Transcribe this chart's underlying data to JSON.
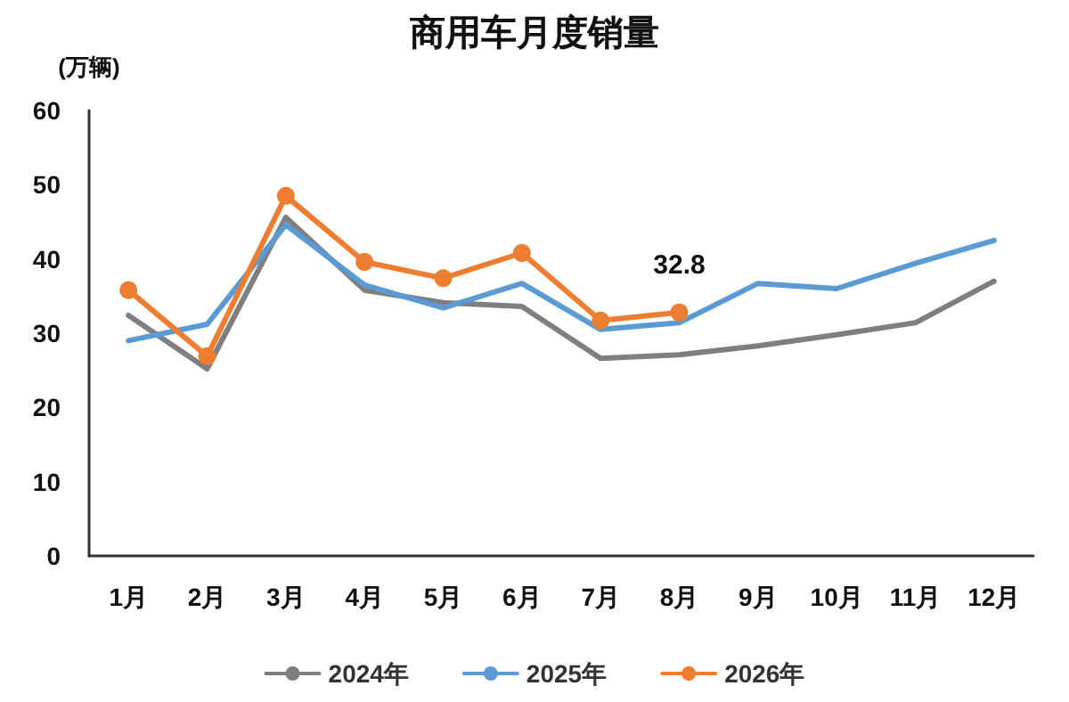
{
  "chart_data": {
    "type": "line",
    "title": "商用车月度销量",
    "ylabel": "(万辆)",
    "categories": [
      "1月",
      "2月",
      "3月",
      "4月",
      "5月",
      "6月",
      "7月",
      "8月",
      "9月",
      "10月",
      "11月",
      "12月"
    ],
    "series": [
      {
        "name": "2024年",
        "color": "#7f7f7f",
        "marker": "none",
        "values": [
          32.4,
          25.2,
          45.6,
          35.8,
          34.1,
          33.6,
          26.6,
          27.1,
          28.3,
          29.8,
          31.4,
          37.0
        ]
      },
      {
        "name": "2025年",
        "color": "#5b9bd5",
        "marker": "none",
        "values": [
          29.0,
          31.2,
          44.6,
          36.5,
          33.4,
          36.7,
          30.5,
          31.4,
          36.7,
          36.0,
          39.4,
          42.5
        ]
      },
      {
        "name": "2026年",
        "color": "#ed7d31",
        "marker": "circle",
        "values": [
          35.8,
          26.9,
          48.5,
          39.6,
          37.4,
          40.8,
          31.7,
          32.8,
          null,
          null,
          null,
          null
        ],
        "value_labels": [
          null,
          null,
          null,
          null,
          null,
          null,
          null,
          "32.8",
          null,
          null,
          null,
          null
        ]
      }
    ],
    "ylim": [
      0,
      60
    ],
    "yticks": [
      0,
      10,
      20,
      30,
      40,
      50,
      60
    ],
    "grid": false,
    "legend": "bottom"
  }
}
